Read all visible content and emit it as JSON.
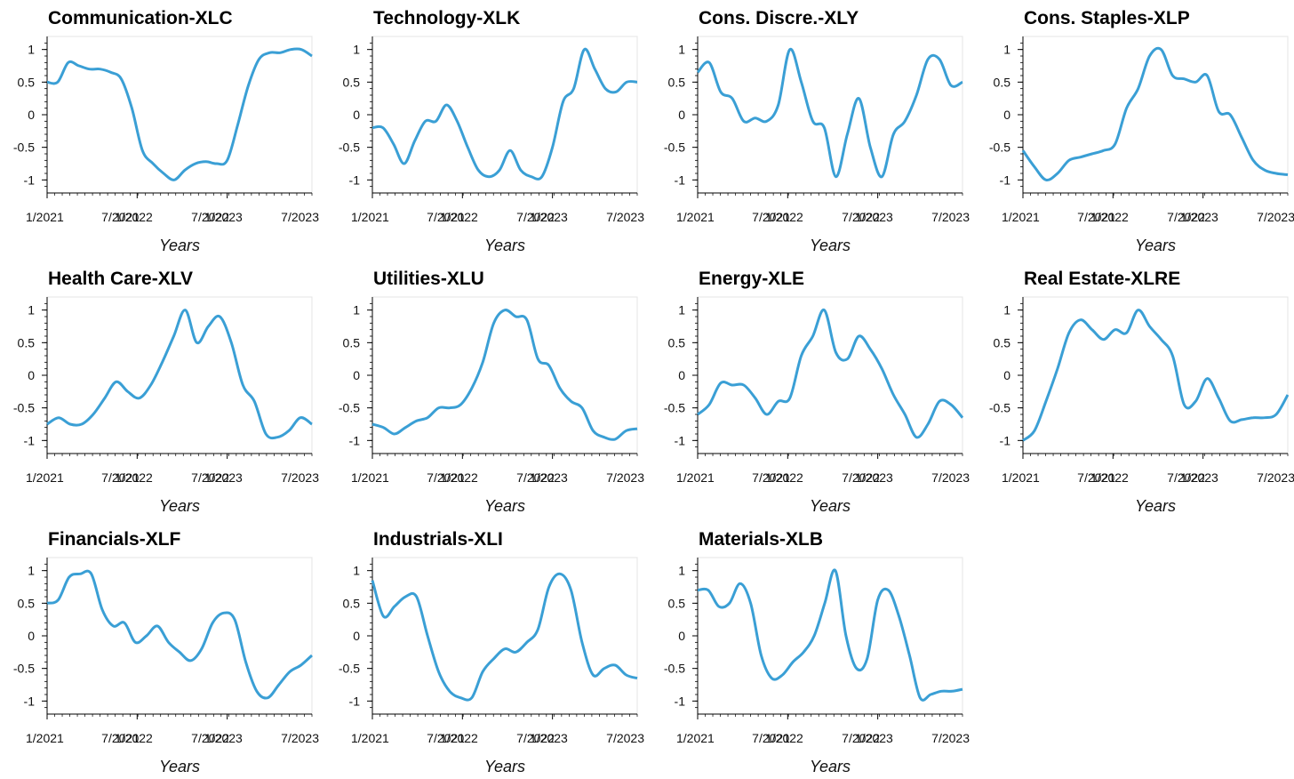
{
  "shared": {
    "xlabel": "Years",
    "yticks": [
      "1",
      "0.5",
      "0",
      "-0.5",
      "-1"
    ],
    "ytick_values": [
      1,
      0.5,
      0,
      -0.5,
      -1
    ],
    "xtick_labels": [
      "1/2021",
      "7/2021",
      "1/2022",
      "7/2022",
      "1/2023",
      "7/2023"
    ],
    "line_color": "#3a9fd5"
  },
  "chart_data": [
    {
      "type": "line",
      "title": "Communication-XLC",
      "xlabel": "Years",
      "x_start": "1/2021",
      "x_end": "11/2023",
      "ylim": [
        -1.2,
        1.2
      ],
      "values": [
        0.5,
        0.5,
        0.8,
        0.75,
        0.7,
        0.7,
        0.65,
        0.55,
        0.1,
        -0.55,
        -0.75,
        -0.9,
        -1.0,
        -0.85,
        -0.75,
        -0.72,
        -0.75,
        -0.7,
        -0.15,
        0.45,
        0.85,
        0.95,
        0.95,
        1.0,
        1.0,
        0.9
      ]
    },
    {
      "type": "line",
      "title": "Technology-XLK",
      "xlabel": "Years",
      "x_start": "1/2021",
      "x_end": "11/2023",
      "ylim": [
        -1.2,
        1.2
      ],
      "values": [
        -0.2,
        -0.2,
        -0.45,
        -0.75,
        -0.4,
        -0.1,
        -0.1,
        0.15,
        -0.1,
        -0.5,
        -0.85,
        -0.95,
        -0.85,
        -0.55,
        -0.85,
        -0.95,
        -0.95,
        -0.5,
        0.2,
        0.4,
        1.0,
        0.7,
        0.4,
        0.35,
        0.5,
        0.5
      ]
    },
    {
      "type": "line",
      "title": "Cons. Discre.-XLY",
      "xlabel": "Years",
      "x_start": "1/2021",
      "x_end": "11/2023",
      "ylim": [
        -1.2,
        1.2
      ],
      "values": [
        0.65,
        0.8,
        0.35,
        0.25,
        -0.1,
        -0.05,
        -0.1,
        0.15,
        1.0,
        0.5,
        -0.1,
        -0.2,
        -0.95,
        -0.3,
        0.25,
        -0.5,
        -0.95,
        -0.3,
        -0.1,
        0.3,
        0.85,
        0.85,
        0.45,
        0.5
      ]
    },
    {
      "type": "line",
      "title": "Cons. Staples-XLP",
      "xlabel": "Years",
      "x_start": "1/2021",
      "x_end": "11/2023",
      "ylim": [
        -1.2,
        1.2
      ],
      "values": [
        -0.55,
        -0.8,
        -1.0,
        -0.9,
        -0.7,
        -0.65,
        -0.6,
        -0.55,
        -0.45,
        0.1,
        0.4,
        0.9,
        1.0,
        0.6,
        0.55,
        0.5,
        0.6,
        0.05,
        0.0,
        -0.35,
        -0.7,
        -0.85,
        -0.9,
        -0.92
      ]
    },
    {
      "type": "line",
      "title": "Health Care-XLV",
      "xlabel": "Years",
      "x_start": "1/2021",
      "x_end": "11/2023",
      "ylim": [
        -1.2,
        1.2
      ],
      "values": [
        -0.75,
        -0.65,
        -0.75,
        -0.75,
        -0.6,
        -0.35,
        -0.1,
        -0.25,
        -0.35,
        -0.15,
        0.2,
        0.6,
        1.0,
        0.5,
        0.75,
        0.9,
        0.5,
        -0.15,
        -0.4,
        -0.9,
        -0.95,
        -0.85,
        -0.65,
        -0.75
      ]
    },
    {
      "type": "line",
      "title": "Utilities-XLU",
      "xlabel": "Years",
      "x_start": "1/2021",
      "x_end": "11/2023",
      "ylim": [
        -1.2,
        1.2
      ],
      "values": [
        -0.75,
        -0.8,
        -0.9,
        -0.8,
        -0.7,
        -0.65,
        -0.5,
        -0.5,
        -0.45,
        -0.2,
        0.2,
        0.8,
        1.0,
        0.9,
        0.85,
        0.25,
        0.15,
        -0.2,
        -0.4,
        -0.5,
        -0.85,
        -0.95,
        -0.98,
        -0.85,
        -0.82
      ]
    },
    {
      "type": "line",
      "title": "Energy-XLE",
      "xlabel": "Years",
      "x_start": "1/2021",
      "x_end": "11/2023",
      "ylim": [
        -1.2,
        1.2
      ],
      "values": [
        -0.6,
        -0.45,
        -0.12,
        -0.15,
        -0.15,
        -0.35,
        -0.6,
        -0.4,
        -0.35,
        0.3,
        0.6,
        1.0,
        0.35,
        0.25,
        0.6,
        0.4,
        0.1,
        -0.3,
        -0.6,
        -0.95,
        -0.75,
        -0.4,
        -0.45,
        -0.65
      ]
    },
    {
      "type": "line",
      "title": "Real Estate-XLRE",
      "xlabel": "Years",
      "x_start": "1/2021",
      "x_end": "11/2023",
      "ylim": [
        -1.2,
        1.2
      ],
      "values": [
        -1.0,
        -0.85,
        -0.4,
        0.1,
        0.65,
        0.85,
        0.7,
        0.55,
        0.7,
        0.65,
        1.0,
        0.75,
        0.55,
        0.3,
        -0.45,
        -0.4,
        -0.05,
        -0.35,
        -0.7,
        -0.68,
        -0.65,
        -0.65,
        -0.6,
        -0.3
      ]
    },
    {
      "type": "line",
      "title": "Financials-XLF",
      "xlabel": "Years",
      "x_start": "1/2021",
      "x_end": "11/2023",
      "ylim": [
        -1.2,
        1.2
      ],
      "values": [
        0.5,
        0.55,
        0.9,
        0.95,
        0.95,
        0.4,
        0.15,
        0.2,
        -0.1,
        0.0,
        0.15,
        -0.1,
        -0.25,
        -0.38,
        -0.2,
        0.2,
        0.35,
        0.25,
        -0.4,
        -0.85,
        -0.95,
        -0.75,
        -0.55,
        -0.45,
        -0.3
      ]
    },
    {
      "type": "line",
      "title": "Industrials-XLI",
      "xlabel": "Years",
      "x_start": "1/2021",
      "x_end": "11/2023",
      "ylim": [
        -1.2,
        1.2
      ],
      "values": [
        0.85,
        0.3,
        0.45,
        0.6,
        0.6,
        0.0,
        -0.55,
        -0.85,
        -0.95,
        -0.95,
        -0.55,
        -0.35,
        -0.2,
        -0.25,
        -0.1,
        0.1,
        0.75,
        0.95,
        0.7,
        -0.1,
        -0.6,
        -0.5,
        -0.45,
        -0.6,
        -0.65
      ]
    },
    {
      "type": "line",
      "title": "Materials-XLB",
      "xlabel": "Years",
      "x_start": "1/2021",
      "x_end": "11/2023",
      "ylim": [
        -1.2,
        1.2
      ],
      "values": [
        0.7,
        0.7,
        0.45,
        0.5,
        0.8,
        0.5,
        -0.3,
        -0.65,
        -0.6,
        -0.4,
        -0.25,
        0.0,
        0.5,
        1.0,
        0.0,
        -0.5,
        -0.35,
        0.55,
        0.7,
        0.3,
        -0.3,
        -0.95,
        -0.9,
        -0.85,
        -0.85,
        -0.82
      ]
    }
  ]
}
